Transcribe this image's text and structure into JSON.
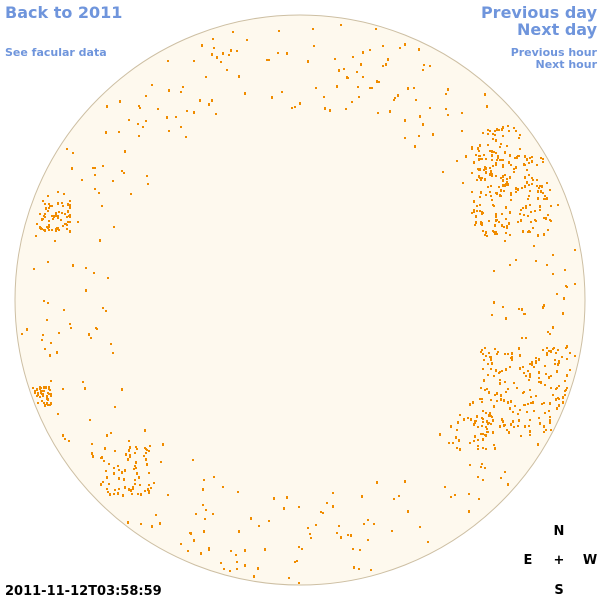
{
  "nav": {
    "back": "Back to 2011",
    "facular": "See facular data",
    "prev_day": "Previous day",
    "next_day": "Next day",
    "prev_hour": "Previous hour",
    "next_hour": "Next hour"
  },
  "timestamp": "2011-11-12T03:58:59",
  "compass": {
    "north": "N",
    "east": "E",
    "center": "+",
    "west": "W",
    "south": "S"
  }
}
